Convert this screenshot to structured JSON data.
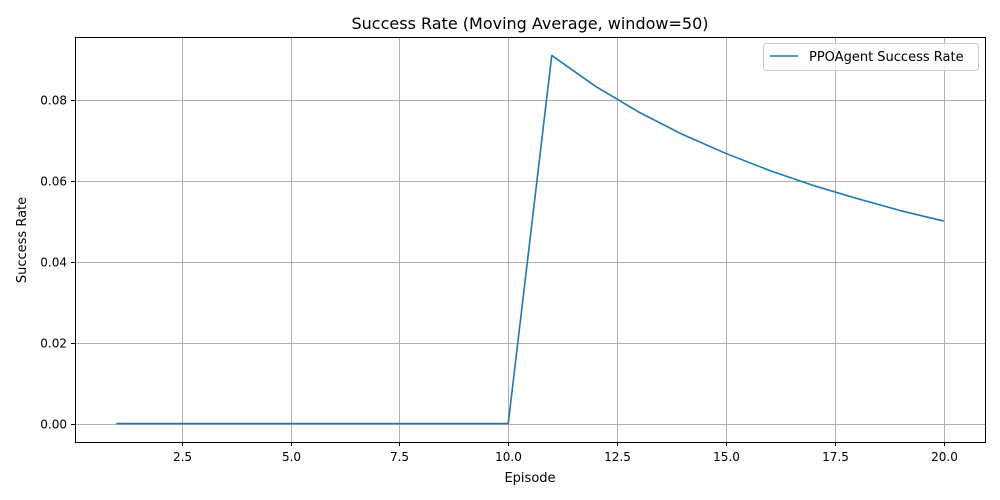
{
  "chart_data": {
    "type": "line",
    "title": "Success Rate (Moving Average, window=50)",
    "xlabel": "Episode",
    "ylabel": "Success Rate",
    "xlim": [
      0.05,
      20.95
    ],
    "ylim": [
      -0.00455,
      0.09545
    ],
    "xticks": [
      2.5,
      5.0,
      7.5,
      10.0,
      12.5,
      15.0,
      17.5,
      20.0
    ],
    "xtick_labels": [
      "2.5",
      "5.0",
      "7.5",
      "10.0",
      "12.5",
      "15.0",
      "17.5",
      "20.0"
    ],
    "yticks": [
      0.0,
      0.02,
      0.04,
      0.06,
      0.08
    ],
    "ytick_labels": [
      "0.00",
      "0.02",
      "0.04",
      "0.06",
      "0.08"
    ],
    "grid": true,
    "legend_position": "top-right",
    "series": [
      {
        "name": "PPOAgent Success Rate",
        "color": "#1f77b4",
        "x": [
          1,
          2,
          3,
          4,
          5,
          6,
          7,
          8,
          9,
          10,
          11,
          12,
          13,
          14,
          15,
          16,
          17,
          18,
          19,
          20
        ],
        "y": [
          0,
          0,
          0,
          0,
          0,
          0,
          0,
          0,
          0,
          0,
          0.0909,
          0.0833,
          0.0769,
          0.0714,
          0.0667,
          0.0625,
          0.0588,
          0.0556,
          0.0526,
          0.05
        ]
      }
    ]
  }
}
